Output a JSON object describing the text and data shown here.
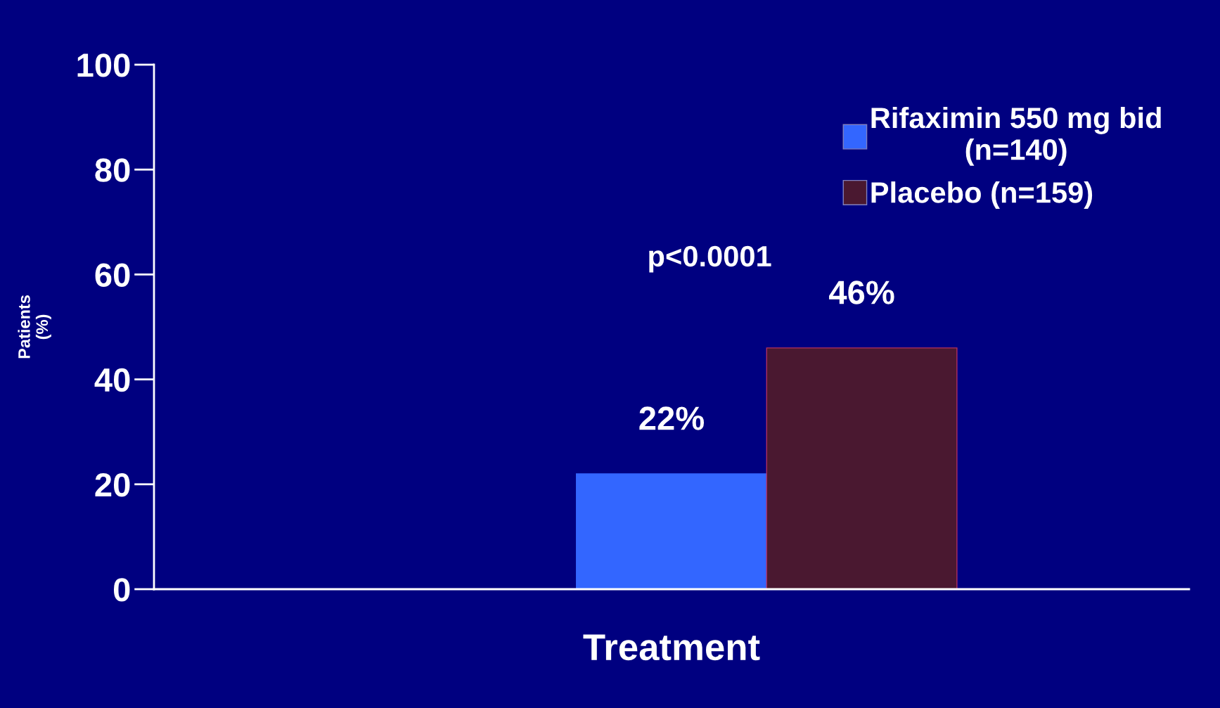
{
  "chart_data": {
    "type": "bar",
    "xlabel": "Treatment",
    "ylabel": "Patients\n(%)",
    "categories": [
      null
    ],
    "series": [
      {
        "name": "Rifaximin 550 mg bid\n(n=140)",
        "color": "#3366ff",
        "values": [
          22
        ],
        "value_labels": [
          "22%"
        ]
      },
      {
        "name": "Placebo (n=159)",
        "color": "#4a1830",
        "values": [
          46
        ],
        "value_labels": [
          "46%"
        ]
      }
    ],
    "ylim": [
      0,
      100
    ],
    "yticks": [
      0,
      20,
      40,
      60,
      80,
      100
    ],
    "annotations": [
      "p<0.0001"
    ],
    "legend": "top right",
    "grid": false
  }
}
